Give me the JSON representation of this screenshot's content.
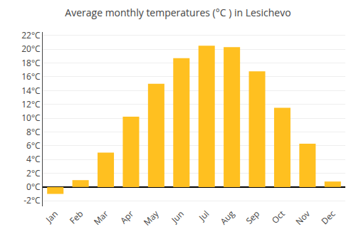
{
  "chart_data": {
    "type": "bar",
    "title": "Average monthly temperatures (°C ) in Lesichevo",
    "categories": [
      "Jan",
      "Feb",
      "Mar",
      "Apr",
      "May",
      "Jun",
      "Jul",
      "Aug",
      "Sep",
      "Oct",
      "Nov",
      "Dec"
    ],
    "values": [
      -1.0,
      1.0,
      5.0,
      10.2,
      15.0,
      18.7,
      20.5,
      20.3,
      16.8,
      11.5,
      6.3,
      0.8
    ],
    "color": "#FFC020",
    "ylim": [
      -2.8,
      22.5
    ],
    "yticks": [
      {
        "value": -2,
        "label": "-2°C"
      },
      {
        "value": 0,
        "label": "0°C"
      },
      {
        "value": 2,
        "label": "2°C"
      },
      {
        "value": 4,
        "label": "4°C"
      },
      {
        "value": 6,
        "label": "6°C"
      },
      {
        "value": 8,
        "label": "8°C"
      },
      {
        "value": 10,
        "label": "10°C"
      },
      {
        "value": 12,
        "label": "12°C"
      },
      {
        "value": 14,
        "label": "14°C"
      },
      {
        "value": 16,
        "label": "16°C"
      },
      {
        "value": 18,
        "label": "18°C"
      },
      {
        "value": 20,
        "label": "20°C"
      },
      {
        "value": 22,
        "label": "22°C"
      }
    ],
    "grid": true
  }
}
